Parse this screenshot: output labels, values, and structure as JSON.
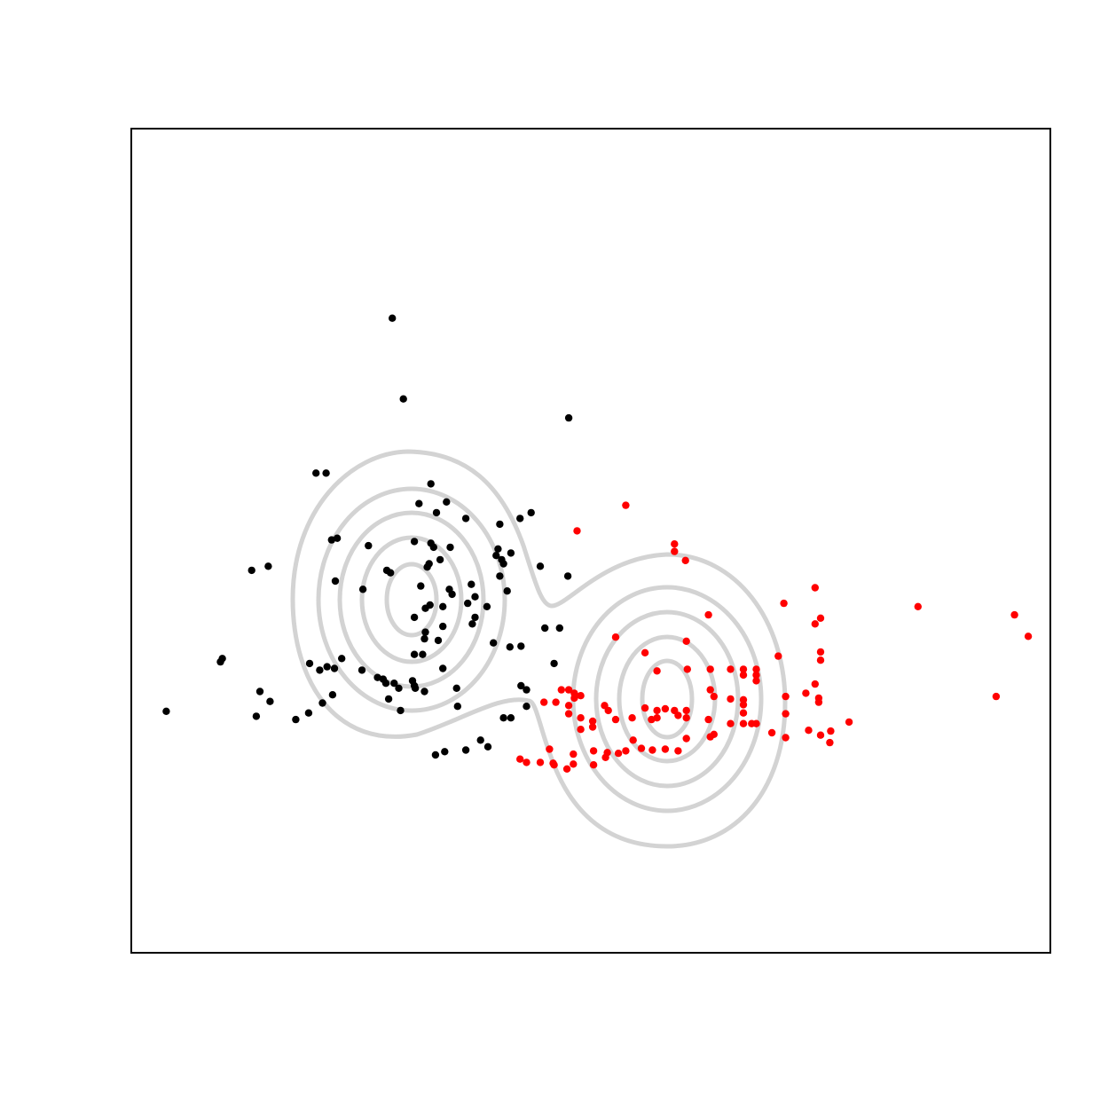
{
  "chart_data": {
    "type": "scatter",
    "title": "",
    "xlabel": "",
    "ylabel": "",
    "axes_shown": false,
    "xlim": [
      0,
      100
    ],
    "ylim": [
      0,
      100
    ],
    "contour_color": "#d3d3d3",
    "series": [
      {
        "color": "#000000",
        "points": [
          [
            28.4,
            77.0
          ],
          [
            29.6,
            67.2
          ],
          [
            47.6,
            64.9
          ],
          [
            20.1,
            58.2
          ],
          [
            21.2,
            58.2
          ],
          [
            32.6,
            56.9
          ],
          [
            34.3,
            54.7
          ],
          [
            31.3,
            54.5
          ],
          [
            33.2,
            53.4
          ],
          [
            36.4,
            52.7
          ],
          [
            42.3,
            52.7
          ],
          [
            43.5,
            53.4
          ],
          [
            40.1,
            52.0
          ],
          [
            22.4,
            50.3
          ],
          [
            21.8,
            50.1
          ],
          [
            32.6,
            49.7
          ],
          [
            30.8,
            49.9
          ],
          [
            32.9,
            49.2
          ],
          [
            34.7,
            49.2
          ],
          [
            39.9,
            49.0
          ],
          [
            39.7,
            48.2
          ],
          [
            40.5,
            47.2
          ],
          [
            33.6,
            47.7
          ],
          [
            25.8,
            49.4
          ],
          [
            27.8,
            46.4
          ],
          [
            41.3,
            48.5
          ],
          [
            40.3,
            47.7
          ],
          [
            32.4,
            47.2
          ],
          [
            32.2,
            46.8
          ],
          [
            31.5,
            44.5
          ],
          [
            37.0,
            44.7
          ],
          [
            34.6,
            44.1
          ],
          [
            34.9,
            43.5
          ],
          [
            33.9,
            42.0
          ],
          [
            32.5,
            42.2
          ],
          [
            37.4,
            43.2
          ],
          [
            32.0,
            41.8
          ],
          [
            36.6,
            42.4
          ],
          [
            40.9,
            43.9
          ],
          [
            30.8,
            40.7
          ],
          [
            44.5,
            46.9
          ],
          [
            40.1,
            45.7
          ],
          [
            28.2,
            46.1
          ],
          [
            38.7,
            42.0
          ],
          [
            32.0,
            38.9
          ],
          [
            30.8,
            36.2
          ],
          [
            31.7,
            36.2
          ],
          [
            37.1,
            39.9
          ],
          [
            39.4,
            37.6
          ],
          [
            33.4,
            37.9
          ],
          [
            33.9,
            39.6
          ],
          [
            25.2,
            44.1
          ],
          [
            22.2,
            45.1
          ],
          [
            13.1,
            46.4
          ],
          [
            14.9,
            46.9
          ],
          [
            9.9,
            35.7
          ],
          [
            9.7,
            35.3
          ],
          [
            19.4,
            35.1
          ],
          [
            20.5,
            34.3
          ],
          [
            22.1,
            34.5
          ],
          [
            22.9,
            35.7
          ],
          [
            25.1,
            34.3
          ],
          [
            26.8,
            33.4
          ],
          [
            27.7,
            32.7
          ],
          [
            28.6,
            32.7
          ],
          [
            29.1,
            32.1
          ],
          [
            30.9,
            32.1
          ],
          [
            31.9,
            31.7
          ],
          [
            35.4,
            32.1
          ],
          [
            27.4,
            33.2
          ],
          [
            21.3,
            34.7
          ],
          [
            30.6,
            33.0
          ],
          [
            30.8,
            32.4
          ],
          [
            33.9,
            34.5
          ],
          [
            21.9,
            31.3
          ],
          [
            20.8,
            30.3
          ],
          [
            14.0,
            31.7
          ],
          [
            15.1,
            30.5
          ],
          [
            3.8,
            29.3
          ],
          [
            13.6,
            28.7
          ],
          [
            19.3,
            29.1
          ],
          [
            17.9,
            28.3
          ],
          [
            38.8,
            25.0
          ],
          [
            36.4,
            24.6
          ],
          [
            38.0,
            25.8
          ],
          [
            33.1,
            24.0
          ],
          [
            35.5,
            29.9
          ],
          [
            34.1,
            24.4
          ],
          [
            43.0,
            31.9
          ],
          [
            42.4,
            32.4
          ],
          [
            41.3,
            28.5
          ],
          [
            40.5,
            28.5
          ],
          [
            43.0,
            29.9
          ],
          [
            46.0,
            35.1
          ],
          [
            41.2,
            37.1
          ],
          [
            42.4,
            37.2
          ],
          [
            46.6,
            39.4
          ],
          [
            45.0,
            39.4
          ],
          [
            47.5,
            45.7
          ],
          [
            37.4,
            40.7
          ],
          [
            31.9,
            38.1
          ],
          [
            28.0,
            30.8
          ],
          [
            29.3,
            29.4
          ]
        ]
      },
      {
        "color": "#ff0000",
        "points": [
          [
            48.5,
            51.2
          ],
          [
            53.8,
            54.3
          ],
          [
            52.7,
            38.3
          ],
          [
            59.1,
            49.6
          ],
          [
            59.1,
            48.7
          ],
          [
            60.3,
            47.6
          ],
          [
            62.8,
            41.0
          ],
          [
            55.9,
            36.4
          ],
          [
            57.2,
            34.2
          ],
          [
            60.4,
            37.8
          ],
          [
            60.5,
            34.4
          ],
          [
            63.0,
            34.4
          ],
          [
            65.2,
            34.4
          ],
          [
            66.6,
            34.4
          ],
          [
            68.0,
            34.4
          ],
          [
            74.4,
            44.3
          ],
          [
            74.4,
            39.9
          ],
          [
            68.0,
            33.7
          ],
          [
            66.6,
            30.7
          ],
          [
            65.2,
            30.8
          ],
          [
            62.8,
            28.3
          ],
          [
            60.4,
            29.4
          ],
          [
            60.4,
            28.5
          ],
          [
            59.1,
            29.4
          ],
          [
            57.2,
            29.4
          ],
          [
            57.2,
            28.5
          ],
          [
            54.5,
            28.5
          ],
          [
            51.9,
            29.4
          ],
          [
            50.2,
            28.1
          ],
          [
            47.6,
            30.0
          ],
          [
            47.6,
            29.0
          ],
          [
            48.9,
            28.5
          ],
          [
            48.9,
            27.1
          ],
          [
            50.2,
            27.4
          ],
          [
            51.5,
            30.0
          ],
          [
            52.7,
            28.3
          ],
          [
            48.2,
            30.9
          ],
          [
            48.2,
            31.5
          ],
          [
            46.8,
            31.9
          ],
          [
            47.6,
            31.9
          ],
          [
            44.9,
            30.4
          ],
          [
            46.2,
            30.4
          ],
          [
            48.9,
            31.2
          ],
          [
            55.9,
            29.7
          ],
          [
            56.6,
            28.3
          ],
          [
            58.1,
            29.6
          ],
          [
            59.5,
            28.8
          ],
          [
            63.0,
            31.9
          ],
          [
            63.4,
            31.1
          ],
          [
            66.6,
            30.1
          ],
          [
            66.6,
            29.1
          ],
          [
            68.0,
            33.0
          ],
          [
            71.2,
            31.1
          ],
          [
            71.2,
            29.0
          ],
          [
            73.4,
            31.5
          ],
          [
            74.4,
            32.6
          ],
          [
            66.6,
            33.7
          ],
          [
            70.4,
            36.0
          ],
          [
            71.0,
            42.4
          ],
          [
            75.0,
            35.5
          ],
          [
            75.0,
            36.5
          ],
          [
            75.0,
            40.6
          ],
          [
            85.6,
            42.0
          ],
          [
            97.6,
            38.4
          ],
          [
            96.1,
            41.0
          ],
          [
            94.1,
            31.1
          ],
          [
            45.5,
            24.7
          ],
          [
            48.1,
            24.1
          ],
          [
            50.3,
            24.5
          ],
          [
            51.8,
            24.3
          ],
          [
            53.8,
            24.5
          ],
          [
            55.5,
            24.8
          ],
          [
            56.7,
            24.6
          ],
          [
            58.1,
            24.7
          ],
          [
            59.5,
            24.5
          ],
          [
            60.4,
            26.0
          ],
          [
            63.0,
            26.2
          ],
          [
            63.4,
            26.5
          ],
          [
            65.2,
            27.8
          ],
          [
            66.6,
            27.8
          ],
          [
            68.0,
            27.8
          ],
          [
            69.7,
            26.7
          ],
          [
            71.2,
            26.1
          ],
          [
            73.7,
            27.0
          ],
          [
            76.0,
            25.5
          ],
          [
            78.1,
            28.0
          ],
          [
            75.0,
            26.4
          ],
          [
            76.1,
            26.9
          ],
          [
            74.8,
            30.9
          ],
          [
            74.8,
            30.4
          ],
          [
            67.5,
            27.8
          ],
          [
            54.6,
            25.8
          ],
          [
            53.0,
            24.2
          ],
          [
            51.6,
            23.7
          ],
          [
            50.3,
            22.8
          ],
          [
            46.0,
            22.8
          ],
          [
            47.4,
            22.3
          ],
          [
            48.1,
            22.9
          ],
          [
            45.9,
            23.0
          ],
          [
            44.5,
            23.1
          ],
          [
            43.0,
            23.1
          ],
          [
            42.3,
            23.5
          ]
        ]
      }
    ]
  }
}
